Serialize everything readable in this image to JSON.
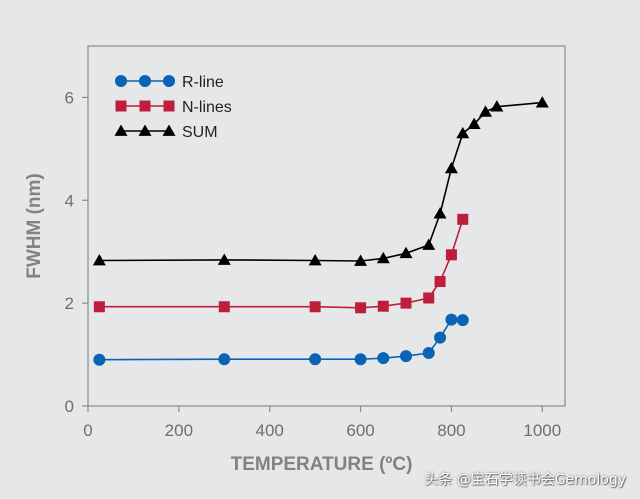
{
  "chart_data": {
    "type": "line",
    "xlabel": "TEMPERATURE (ºC)",
    "ylabel": "FWHM (nm)",
    "xlim": [
      0,
      1050
    ],
    "ylim": [
      0,
      7
    ],
    "xticks": [
      0,
      200,
      400,
      600,
      800,
      1000
    ],
    "yticks": [
      0,
      2,
      4,
      6
    ],
    "legend_position": "top-left",
    "grid": false,
    "series": [
      {
        "name": "R-line",
        "color": "#0a63b4",
        "marker": "circle",
        "x": [
          25,
          300,
          500,
          600,
          650,
          700,
          750,
          775,
          800,
          825
        ],
        "y": [
          0.9,
          0.91,
          0.91,
          0.91,
          0.93,
          0.97,
          1.03,
          1.33,
          1.68,
          1.67
        ]
      },
      {
        "name": "N-lines",
        "color": "#be1e3c",
        "marker": "square",
        "x": [
          25,
          300,
          500,
          600,
          650,
          700,
          750,
          775,
          800,
          825
        ],
        "y": [
          1.93,
          1.93,
          1.93,
          1.91,
          1.94,
          2.0,
          2.1,
          2.42,
          2.94,
          3.63
        ]
      },
      {
        "name": "SUM",
        "color": "#000000",
        "marker": "triangle",
        "x": [
          25,
          300,
          500,
          600,
          650,
          700,
          750,
          775,
          800,
          825,
          850,
          875,
          900,
          1000
        ],
        "y": [
          2.83,
          2.84,
          2.83,
          2.82,
          2.87,
          2.97,
          3.13,
          3.74,
          4.62,
          5.3,
          5.48,
          5.72,
          5.82,
          5.9
        ]
      }
    ]
  },
  "watermark": "头条 @宝石学读书会Gemology"
}
